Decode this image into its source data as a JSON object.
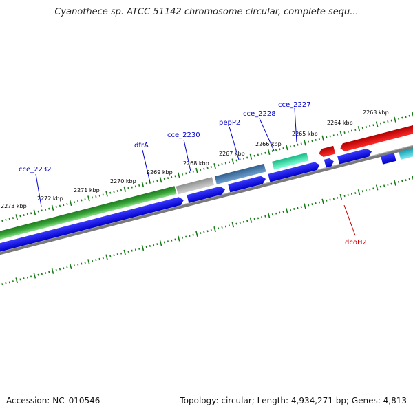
{
  "title": "Cyanothece sp. ATCC 51142 chromosome circular, complete sequ...",
  "footer": {
    "accession": "Accession: NC_010546",
    "summary": "Topology: circular; Length: 4,934,271 bp; Genes: 4,813"
  },
  "ticks": [
    {
      "label": "2273 kbp"
    },
    {
      "label": "2272 kbp"
    },
    {
      "label": "2271 kbp"
    },
    {
      "label": "2270 kbp"
    },
    {
      "label": "2269 kbp"
    },
    {
      "label": "2268 kbp"
    },
    {
      "label": "2267 kbp"
    },
    {
      "label": "2266 kbp"
    },
    {
      "label": "2265 kbp"
    },
    {
      "label": "2264 kbp"
    },
    {
      "label": "2263 kbp"
    }
  ],
  "gene_labels": [
    {
      "name": "cce_2232",
      "color": "#0000cc"
    },
    {
      "name": "dfrA",
      "color": "#0000cc"
    },
    {
      "name": "cce_2230",
      "color": "#0000cc"
    },
    {
      "name": "pepP2",
      "color": "#0000cc"
    },
    {
      "name": "cce_2228",
      "color": "#0000cc"
    },
    {
      "name": "cce_2227",
      "color": "#0000cc"
    },
    {
      "name": "dcoH2",
      "color": "#cc0000"
    }
  ],
  "colors": {
    "cds_blue": "#0000ee",
    "green_feature": "#2e9a2e",
    "gray_feature": "#b5b5b5",
    "steel_feature": "#4a7fb0",
    "teal_feature": "#33e0a8",
    "red_feature": "#ee0000",
    "cyan_feature": "#22c8d8",
    "backbone": "#888888",
    "tick": "#1a7a1a"
  }
}
